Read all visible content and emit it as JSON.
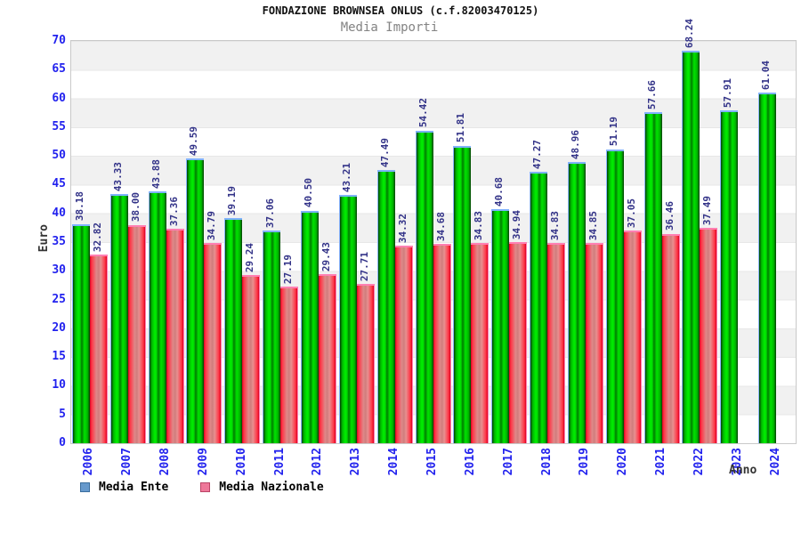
{
  "chart_data": {
    "type": "bar",
    "title": "FONDAZIONE BROWNSEA ONLUS (c.f.82003470125)",
    "subtitle": "Media Importi",
    "xlabel": "Anno",
    "ylabel": "Euro",
    "ylim": [
      0,
      70
    ],
    "ytick_step": 5,
    "grid": "horizontal-bands",
    "legend_position": "bottom-left",
    "categories": [
      "2006",
      "2007",
      "2008",
      "2009",
      "2010",
      "2011",
      "2012",
      "2013",
      "2014",
      "2015",
      "2016",
      "2017",
      "2018",
      "2019",
      "2020",
      "2021",
      "2022",
      "2023",
      "2024"
    ],
    "series": [
      {
        "name": "Media Ente",
        "bar_color": "green",
        "legend_color": "#6699cc",
        "values": [
          38.18,
          43.33,
          43.88,
          49.59,
          39.19,
          37.06,
          40.5,
          43.21,
          47.49,
          54.42,
          51.81,
          40.68,
          47.27,
          48.96,
          51.19,
          57.66,
          68.24,
          57.91,
          61.04
        ]
      },
      {
        "name": "Media Nazionale",
        "bar_color": "red",
        "legend_color": "#ee7799",
        "values": [
          32.82,
          38.0,
          37.36,
          34.79,
          29.24,
          27.19,
          29.43,
          27.71,
          34.32,
          34.68,
          34.83,
          34.94,
          34.83,
          34.85,
          37.05,
          36.46,
          37.49,
          null,
          null
        ]
      }
    ],
    "colors": {
      "axis_text": "#2222ee",
      "value_text": "#333388",
      "subtitle_text": "#838383",
      "band_gray": "#f1f1f1",
      "bar_green": "#00cc00",
      "bar_red": "#ee3344"
    }
  }
}
